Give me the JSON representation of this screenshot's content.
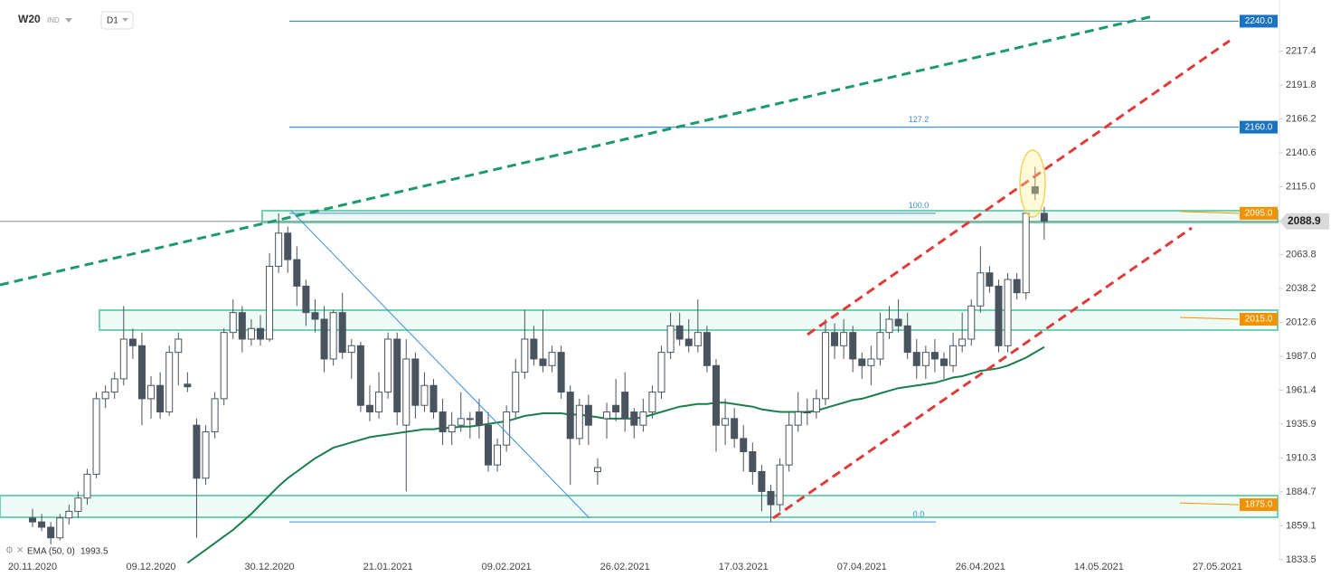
{
  "chart_data": {
    "type": "candlestick",
    "title": "W20",
    "subtitle": "IND",
    "interval": "D1",
    "categories": [
      "20.11.2020",
      null,
      null,
      null,
      null,
      null,
      null,
      null,
      null,
      null,
      null,
      null,
      null,
      "09.12.2020",
      null,
      null,
      null,
      null,
      null,
      null,
      null,
      null,
      null,
      null,
      null,
      null,
      "30.12.2020",
      null,
      null,
      null,
      null,
      null,
      null,
      null,
      null,
      null,
      null,
      null,
      null,
      "21.01.2021",
      null,
      null,
      null,
      null,
      null,
      null,
      null,
      null,
      null,
      null,
      null,
      null,
      "09.02.2021",
      null,
      null,
      null,
      null,
      null,
      null,
      null,
      null,
      null,
      null,
      null,
      null,
      "26.02.2021",
      null,
      null,
      null,
      null,
      null,
      null,
      null,
      null,
      null,
      null,
      null,
      null,
      "17.03.2021",
      null,
      null,
      null,
      null,
      null,
      null,
      null,
      null,
      null,
      null,
      null,
      null,
      "07.04.2021",
      null,
      null,
      null,
      null,
      null,
      null,
      null,
      null,
      null,
      null,
      null,
      null,
      "26.04.2021",
      null,
      null,
      null,
      null,
      null,
      null,
      null,
      null,
      null,
      null,
      null,
      null,
      "14.05.2021",
      null,
      null,
      null,
      null,
      null,
      null,
      null,
      null,
      null,
      null,
      null,
      null,
      "27.05.2021"
    ],
    "candles": [
      [
        1865,
        1872,
        1858,
        1862
      ],
      [
        1862,
        1868,
        1855,
        1858
      ],
      [
        1858,
        1862,
        1845,
        1850
      ],
      [
        1850,
        1868,
        1848,
        1865
      ],
      [
        1865,
        1875,
        1860,
        1870
      ],
      [
        1870,
        1885,
        1865,
        1880
      ],
      [
        1880,
        1902,
        1875,
        1898
      ],
      [
        1898,
        1960,
        1895,
        1955
      ],
      [
        1955,
        1965,
        1948,
        1960
      ],
      [
        1960,
        1975,
        1955,
        1970
      ],
      [
        1970,
        2025,
        1965,
        2000
      ],
      [
        2000,
        2008,
        1985,
        1995
      ],
      [
        1995,
        2005,
        1935,
        1955
      ],
      [
        1955,
        1972,
        1940,
        1965
      ],
      [
        1965,
        1975,
        1940,
        1945
      ],
      [
        1945,
        1995,
        1942,
        1990
      ],
      [
        1990,
        2005,
        1965,
        2000
      ],
      [
        1966,
        1975,
        1960,
        1964
      ],
      [
        1935,
        1940,
        1850,
        1895
      ],
      [
        1895,
        1935,
        1890,
        1930
      ],
      [
        1930,
        1960,
        1925,
        1955
      ],
      [
        1955,
        2008,
        1950,
        2005
      ],
      [
        2005,
        2030,
        2000,
        2020
      ],
      [
        2020,
        2025,
        1990,
        2000
      ],
      [
        2000,
        2015,
        1995,
        2008
      ],
      [
        2008,
        2018,
        1995,
        2000
      ],
      [
        2000,
        2065,
        1998,
        2055
      ],
      [
        2055,
        2095,
        2050,
        2080
      ],
      [
        2080,
        2085,
        2050,
        2060
      ],
      [
        2060,
        2070,
        2025,
        2040
      ],
      [
        2040,
        2045,
        2010,
        2020
      ],
      [
        2020,
        2030,
        2005,
        2015
      ],
      [
        2015,
        2025,
        1975,
        1985
      ],
      [
        1985,
        2022,
        1980,
        2020
      ],
      [
        2020,
        2035,
        1985,
        1990
      ],
      [
        1990,
        2000,
        1970,
        1995
      ],
      [
        1995,
        1998,
        1945,
        1950
      ],
      [
        1950,
        1965,
        1938,
        1945
      ],
      [
        1945,
        1975,
        1940,
        1960
      ],
      [
        1960,
        2005,
        1955,
        2000
      ],
      [
        2000,
        2005,
        1935,
        1945
      ],
      [
        1935,
        2000,
        1885,
        1985
      ],
      [
        1985,
        1990,
        1940,
        1950
      ],
      [
        1950,
        1975,
        1945,
        1965
      ],
      [
        1965,
        1970,
        1940,
        1945
      ],
      [
        1945,
        1955,
        1920,
        1930
      ],
      [
        1930,
        1945,
        1920,
        1935
      ],
      [
        1935,
        1960,
        1930,
        1940
      ],
      [
        1940,
        1945,
        1925,
        1940
      ],
      [
        1945,
        1955,
        1925,
        1935
      ],
      [
        1935,
        1945,
        1900,
        1905
      ],
      [
        1905,
        1925,
        1900,
        1920
      ],
      [
        1920,
        1950,
        1915,
        1945
      ],
      [
        1945,
        1985,
        1940,
        1975
      ],
      [
        1975,
        2022,
        1970,
        2000
      ],
      [
        2000,
        2010,
        1980,
        1985
      ],
      [
        1985,
        2022,
        1975,
        1980
      ],
      [
        1980,
        1995,
        1975,
        1990
      ],
      [
        1990,
        1995,
        1955,
        1960
      ],
      [
        1960,
        1965,
        1890,
        1925
      ],
      [
        1925,
        1955,
        1920,
        1950
      ],
      [
        1950,
        1958,
        1920,
        1935
      ],
      [
        1900,
        1910,
        1890,
        1903
      ],
      [
        1940,
        1952,
        1925,
        1945
      ],
      [
        1950,
        1970,
        1938,
        1945
      ],
      [
        1960,
        1975,
        1930,
        1940
      ],
      [
        1945,
        1948,
        1925,
        1935
      ],
      [
        1935,
        1955,
        1930,
        1945
      ],
      [
        1945,
        1965,
        1940,
        1960
      ],
      [
        1960,
        1995,
        1955,
        1990
      ],
      [
        1990,
        2020,
        1985,
        2010
      ],
      [
        2010,
        2020,
        1995,
        2000
      ],
      [
        2000,
        2015,
        1990,
        1995
      ],
      [
        1995,
        2030,
        1990,
        2005
      ],
      [
        2005,
        2010,
        1975,
        1980
      ],
      [
        1980,
        1985,
        1915,
        1935
      ],
      [
        1935,
        1955,
        1920,
        1940
      ],
      [
        1940,
        1948,
        1918,
        1925
      ],
      [
        1925,
        1935,
        1900,
        1915
      ],
      [
        1915,
        1922,
        1890,
        1900
      ],
      [
        1900,
        1905,
        1870,
        1885
      ],
      [
        1885,
        1890,
        1862,
        1875
      ],
      [
        1875,
        1910,
        1870,
        1905
      ],
      [
        1905,
        1945,
        1900,
        1935
      ],
      [
        1935,
        1960,
        1930,
        1945
      ],
      [
        1945,
        1955,
        1935,
        1945
      ],
      [
        1945,
        1962,
        1940,
        1955
      ],
      [
        1955,
        2015,
        1950,
        2005
      ],
      [
        2005,
        2012,
        1985,
        1995
      ],
      [
        1995,
        2015,
        1985,
        2005
      ],
      [
        2005,
        2010,
        1975,
        1985
      ],
      [
        1985,
        1990,
        1970,
        1980
      ],
      [
        1980,
        1995,
        1965,
        1985
      ],
      [
        1985,
        2020,
        1980,
        2005
      ],
      [
        2005,
        2025,
        2000,
        2015
      ],
      [
        2015,
        2030,
        2005,
        2010
      ],
      [
        2010,
        2020,
        1985,
        1990
      ],
      [
        1990,
        2000,
        1970,
        1980
      ],
      [
        1980,
        1995,
        1970,
        1990
      ],
      [
        1990,
        2000,
        1975,
        1985
      ],
      [
        1985,
        1990,
        1970,
        1980
      ],
      [
        1980,
        2005,
        1975,
        1995
      ],
      [
        1995,
        2020,
        1990,
        2000
      ],
      [
        2000,
        2030,
        1995,
        2025
      ],
      [
        2025,
        2070,
        2020,
        2050
      ],
      [
        2050,
        2055,
        2035,
        2040
      ],
      [
        2040,
        2045,
        1990,
        1995
      ],
      [
        1995,
        2050,
        1990,
        2045
      ],
      [
        2045,
        2050,
        2030,
        2035
      ],
      [
        2035,
        2095,
        2030,
        2095
      ],
      [
        2115,
        2130,
        2105,
        2110
      ],
      [
        2095,
        2100,
        2075,
        2089
      ],
      null,
      null,
      null,
      null,
      null,
      null,
      null,
      null,
      null,
      null,
      null,
      null,
      null,
      null,
      null,
      null,
      null,
      null,
      null
    ],
    "ema": {
      "name": "EMA (50, 0)",
      "last": 1993.5,
      "color": "#1a7f4b",
      "values": [
        null,
        null,
        null,
        null,
        null,
        null,
        null,
        null,
        null,
        null,
        null,
        null,
        null,
        null,
        null,
        null,
        null,
        1831,
        1836,
        1841,
        1846,
        1851,
        1856,
        1862,
        1868,
        1875,
        1882,
        1889,
        1895,
        1900,
        1905,
        1910,
        1914,
        1918,
        1920,
        1922,
        1924,
        1926,
        1927,
        1928,
        1929,
        1930,
        1931,
        1932,
        1932,
        1933,
        1933,
        1934,
        1934,
        1935,
        1936,
        1937,
        1938,
        1940,
        1942,
        1943,
        1944,
        1944,
        1944,
        1943,
        1943,
        1942,
        1941,
        1940,
        1940,
        1940,
        1940,
        1941,
        1943,
        1945,
        1947,
        1949,
        1950,
        1951,
        1951,
        1952,
        1952,
        1951,
        1950,
        1949,
        1947,
        1946,
        1945,
        1945,
        1945,
        1945,
        1946,
        1948,
        1950,
        1952,
        1954,
        1955,
        1957,
        1959,
        1961,
        1963,
        1964,
        1965,
        1966,
        1967,
        1969,
        1971,
        1972,
        1974,
        1976,
        1977,
        1978,
        1980,
        1983,
        1986,
        1990,
        1994,
        null,
        null,
        null,
        null,
        null,
        null,
        null,
        null,
        null,
        null,
        null,
        null,
        null,
        null,
        null,
        null,
        null,
        null,
        null
      ]
    },
    "ylim": [
      1830,
      2256
    ],
    "yticks": [
      2217.4,
      2191.8,
      2166.2,
      2140.6,
      {
        "value": 2115.0,
        "label": "2115.0"
      },
      2063.8,
      2038.2,
      2012.6,
      {
        "value": 1987.0,
        "label": "1987.0"
      },
      1961.4,
      1935.9,
      1910.3,
      1884.7,
      1859.1,
      1833.5
    ],
    "levels": [
      {
        "value": 2240,
        "label": "2240.0",
        "color": "#1a73c2"
      },
      {
        "value": 2160,
        "label": "2160.0",
        "color": "#1a73c2"
      },
      {
        "value": 2095,
        "label": "2095.0",
        "color": "#f39200"
      },
      {
        "value": 2015,
        "label": "2015.0",
        "color": "#f39200"
      },
      {
        "value": 1875,
        "label": "1875.0",
        "color": "#f39200"
      }
    ],
    "last_price": {
      "value": 2088.9,
      "label": "2088.9"
    },
    "fibonacci": [
      {
        "value": 2160,
        "label": "127.2"
      },
      {
        "value": 2095,
        "label": "100.0"
      },
      {
        "value": 1862,
        "label": "0.0"
      }
    ]
  }
}
